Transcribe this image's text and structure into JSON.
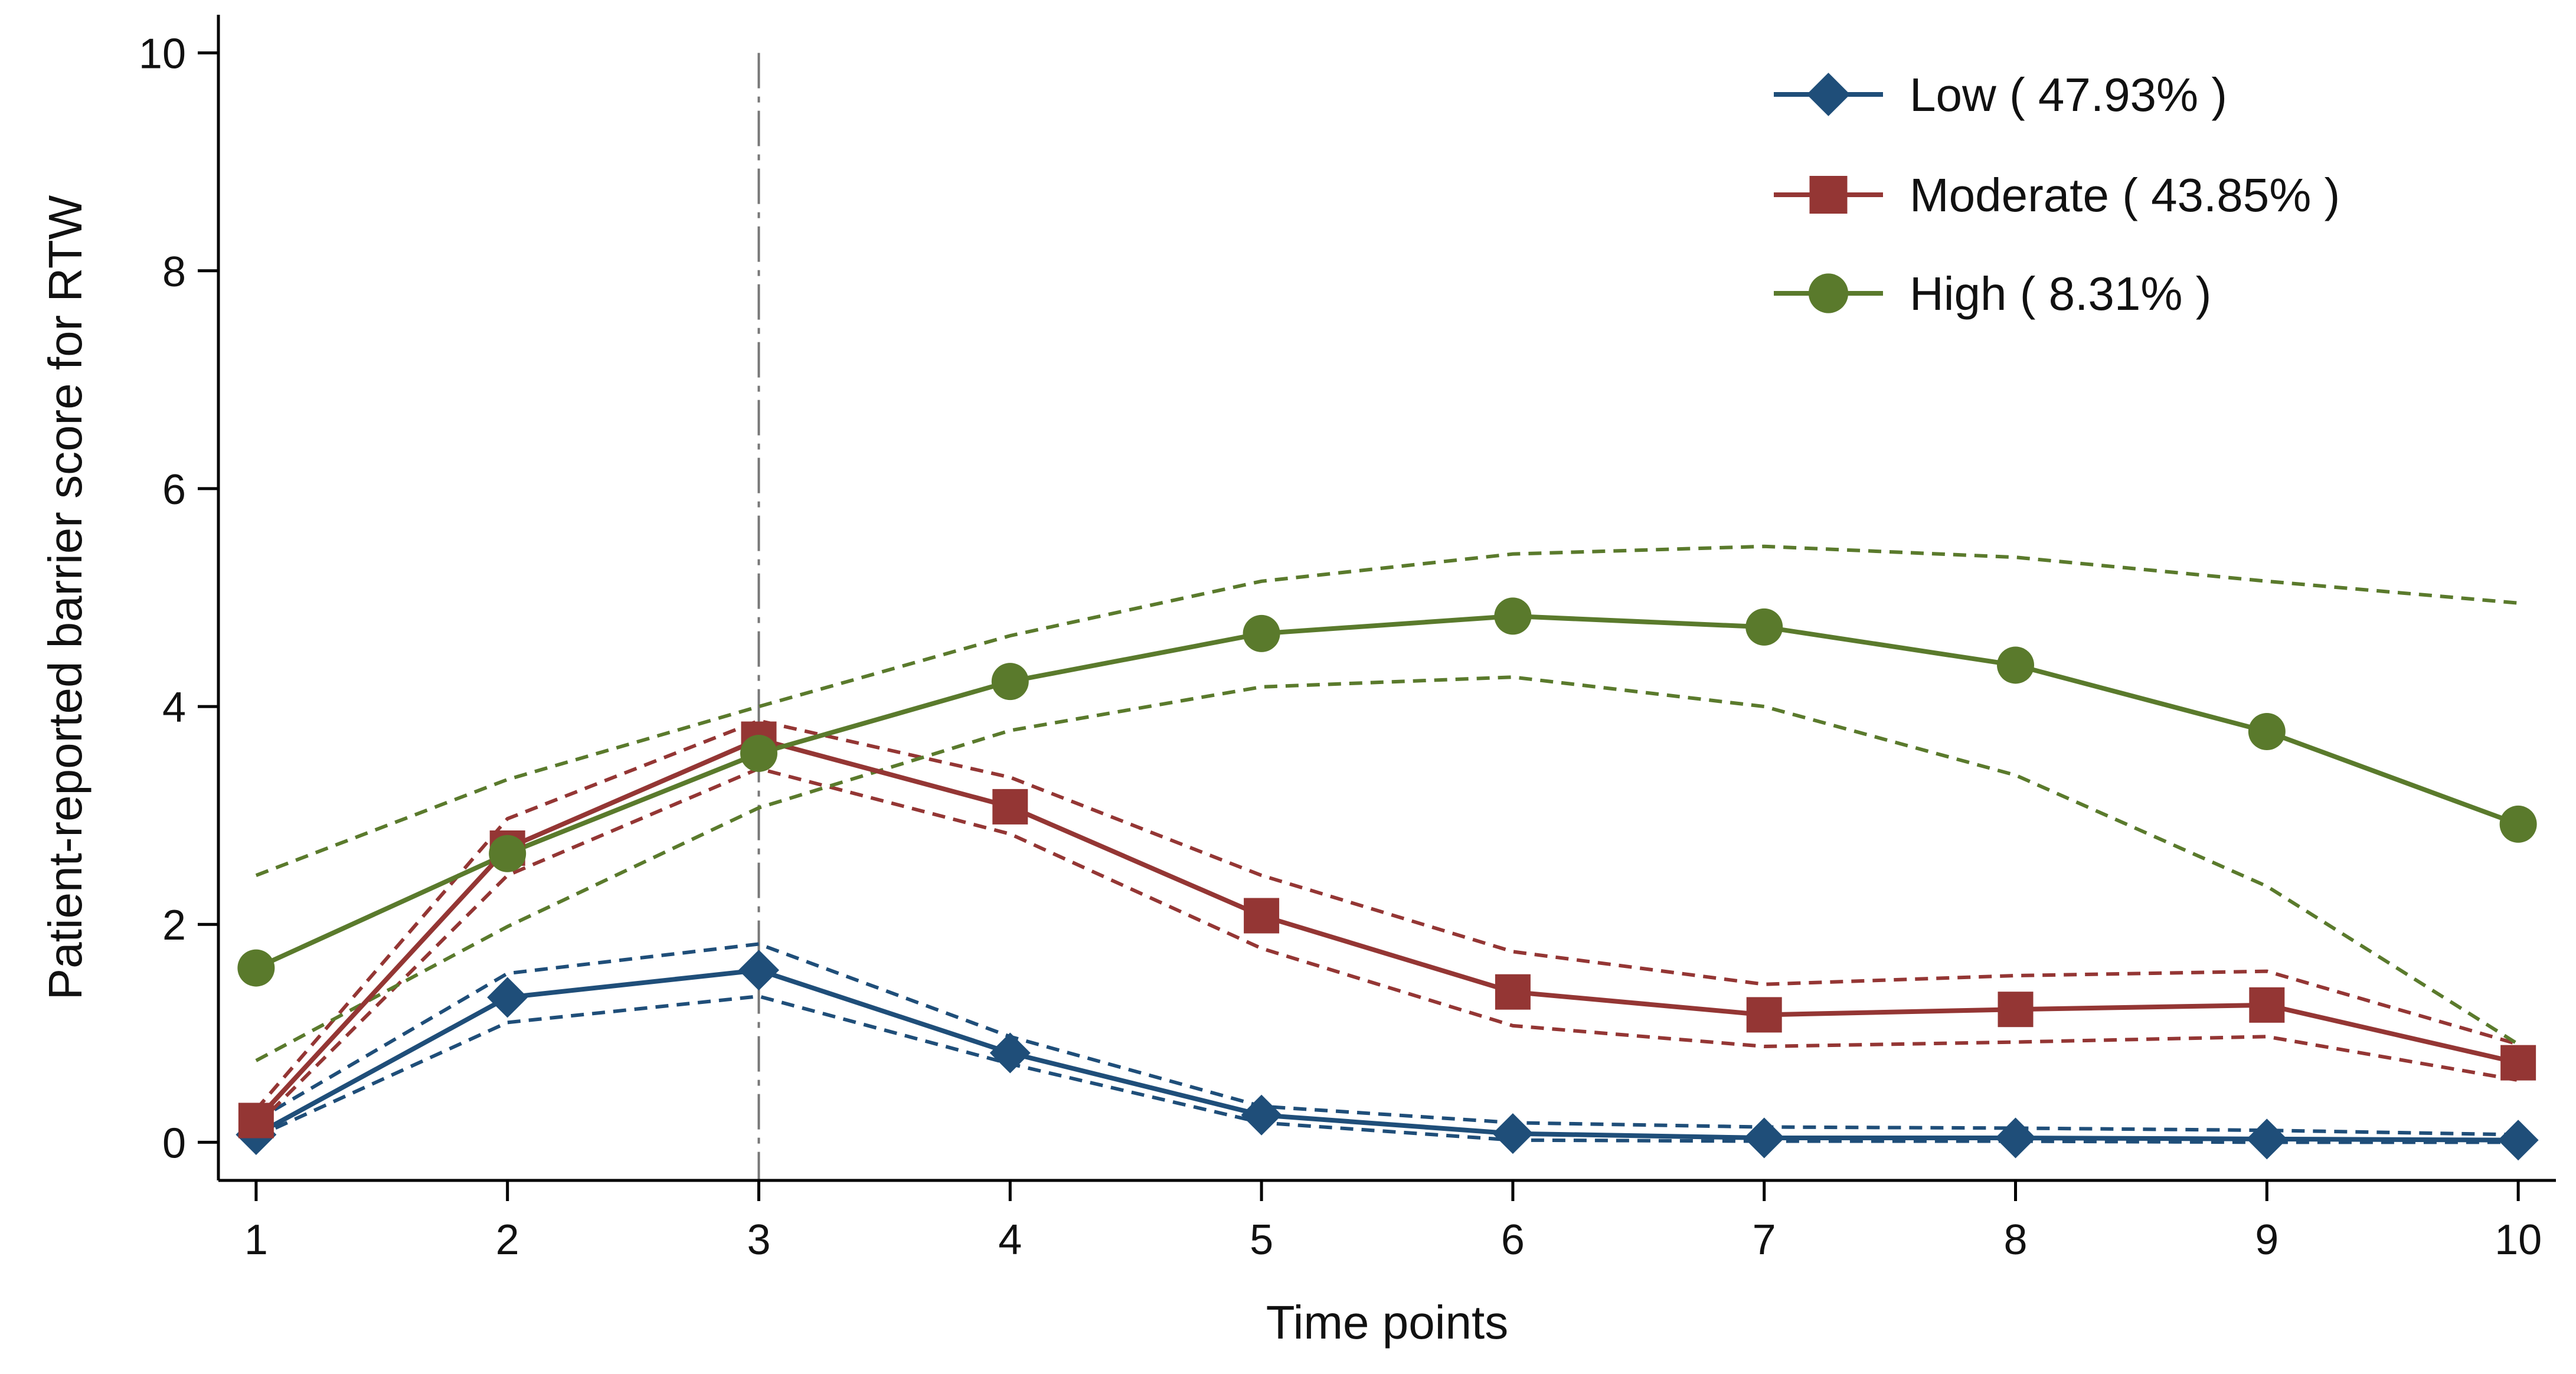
{
  "chart_data": {
    "type": "line",
    "title": "",
    "xlabel": "Time points",
    "ylabel": "Patient-reported barrier score for RTW",
    "x": [
      1,
      2,
      3,
      4,
      5,
      6,
      7,
      8,
      9,
      10
    ],
    "xlim": [
      0.85,
      10.15
    ],
    "ylim": [
      -0.35,
      10.35
    ],
    "xticks": [
      "1",
      "2",
      "3",
      "4",
      "5",
      "6",
      "7",
      "8",
      "9",
      "10"
    ],
    "yticks": [
      "0",
      "2",
      "4",
      "6",
      "8",
      "10"
    ],
    "grid": false,
    "legend_position": "top-right",
    "reference_line_x": 3,
    "series": [
      {
        "name": "Low ( 47.93% )",
        "color": "#1f4e79",
        "marker": "diamond",
        "values": [
          0.07,
          1.33,
          1.58,
          0.82,
          0.25,
          0.08,
          0.04,
          0.04,
          0.03,
          0.02
        ],
        "ci_lower": [
          0.05,
          1.1,
          1.34,
          0.72,
          0.18,
          0.02,
          0.01,
          0.01,
          0.0,
          0.0
        ],
        "ci_upper": [
          0.2,
          1.55,
          1.82,
          0.97,
          0.33,
          0.18,
          0.14,
          0.13,
          0.11,
          0.07
        ]
      },
      {
        "name": "Moderate ( 43.85% )",
        "color": "#943634",
        "marker": "square",
        "values": [
          0.2,
          2.7,
          3.7,
          3.08,
          2.08,
          1.38,
          1.17,
          1.22,
          1.26,
          0.73
        ],
        "ci_lower": [
          0.15,
          2.45,
          3.43,
          2.83,
          1.78,
          1.07,
          0.88,
          0.92,
          0.97,
          0.57
        ],
        "ci_upper": [
          0.3,
          2.97,
          3.87,
          3.35,
          2.45,
          1.75,
          1.45,
          1.53,
          1.57,
          0.9
        ]
      },
      {
        "name": "High ( 8.31% )",
        "color": "#5a7a2c",
        "marker": "circle",
        "values": [
          1.6,
          2.65,
          3.57,
          4.23,
          4.67,
          4.83,
          4.73,
          4.38,
          3.77,
          2.92
        ],
        "ci_lower": [
          0.75,
          1.98,
          3.07,
          3.78,
          4.18,
          4.27,
          4.0,
          3.37,
          2.35,
          0.9
        ],
        "ci_upper": [
          2.45,
          3.33,
          4.0,
          4.65,
          5.15,
          5.4,
          5.47,
          5.37,
          5.15,
          4.95
        ]
      }
    ]
  }
}
